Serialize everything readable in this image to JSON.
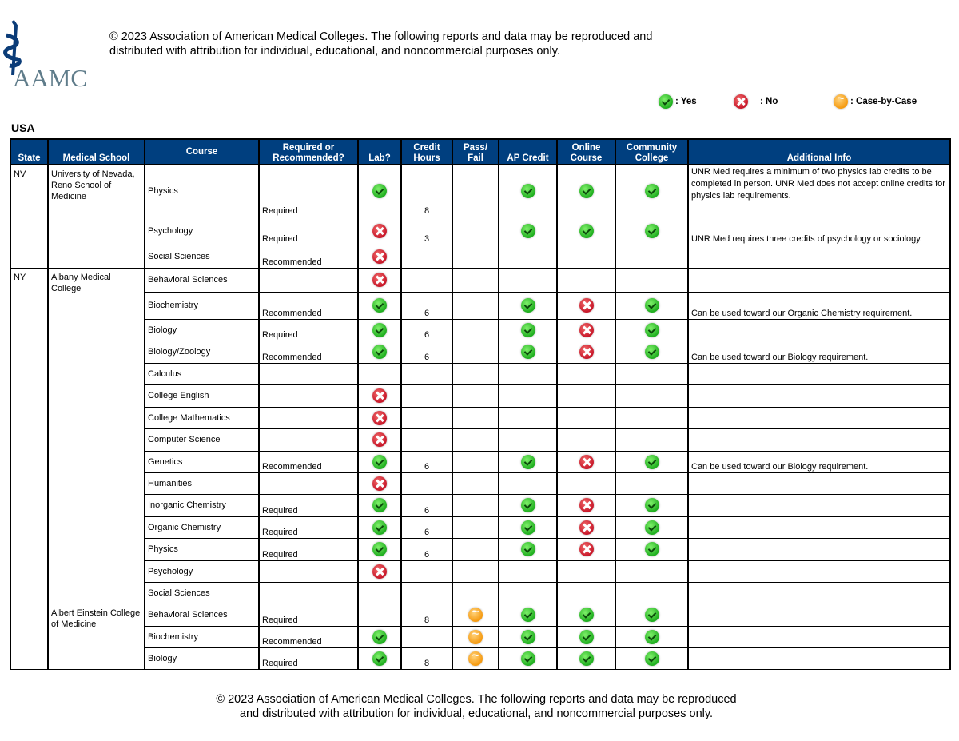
{
  "header": {
    "logo_text": "AAMC",
    "copyright": "© 2023 Association of American Medical Colleges. The following reports and data may be reproduced and distributed with attribution for individual, educational, and noncommercial purposes only."
  },
  "legend": {
    "yes": ": Yes",
    "no": ": No",
    "case": ": Case-by-Case"
  },
  "section_title": "USA",
  "columns": [
    "State",
    "Medical School",
    "Course",
    "Required or Recommended?",
    "Lab?",
    "Credit Hours",
    "Pass/ Fail",
    "AP Credit",
    "Online Course",
    "Community College",
    "Additional Info"
  ],
  "colors": {
    "header_bg": "#003f7f",
    "yes": "#1fae1f",
    "no": "#c8182a",
    "case": "#f59a10"
  },
  "states": [
    {
      "state": "NV",
      "schools": [
        {
          "name": "University of Nevada, Reno School of Medicine",
          "courses": [
            {
              "course": "Physics",
              "req": "Required",
              "lab": "yes",
              "hours": "8",
              "pf": "",
              "ap": "yes",
              "online": "yes",
              "cc": "yes",
              "info": "UNR Med requires a minimum of two physics lab credits to be completed in person. UNR Med does not accept online credits for physics lab requirements."
            },
            {
              "course": "Psychology",
              "req": "Required",
              "lab": "no",
              "hours": "3",
              "pf": "",
              "ap": "yes",
              "online": "yes",
              "cc": "yes",
              "info": "UNR Med requires three credits of psychology or sociology."
            },
            {
              "course": "Social Sciences",
              "req": "Recommended",
              "lab": "no",
              "hours": "",
              "pf": "",
              "ap": "",
              "online": "",
              "cc": "",
              "info": ""
            }
          ]
        }
      ]
    },
    {
      "state": "NY",
      "schools": [
        {
          "name": "Albany Medical College",
          "courses": [
            {
              "course": "Behavioral Sciences",
              "req": "",
              "lab": "no",
              "hours": "",
              "pf": "",
              "ap": "",
              "online": "",
              "cc": "",
              "info": ""
            },
            {
              "course": "Biochemistry",
              "req": "Recommended",
              "lab": "yes",
              "hours": "6",
              "pf": "",
              "ap": "yes",
              "online": "no",
              "cc": "yes",
              "info": "Can be used toward our Organic Chemistry requirement."
            },
            {
              "course": "Biology",
              "req": "Required",
              "lab": "yes",
              "hours": "6",
              "pf": "",
              "ap": "yes",
              "online": "no",
              "cc": "yes",
              "info": ""
            },
            {
              "course": "Biology/Zoology",
              "req": "Recommended",
              "lab": "yes",
              "hours": "6",
              "pf": "",
              "ap": "yes",
              "online": "no",
              "cc": "yes",
              "info": "Can be used toward our Biology requirement."
            },
            {
              "course": "Calculus",
              "req": "",
              "lab": "",
              "hours": "",
              "pf": "",
              "ap": "",
              "online": "",
              "cc": "",
              "info": ""
            },
            {
              "course": "College English",
              "req": "",
              "lab": "no",
              "hours": "",
              "pf": "",
              "ap": "",
              "online": "",
              "cc": "",
              "info": ""
            },
            {
              "course": "College Mathematics",
              "req": "",
              "lab": "no",
              "hours": "",
              "pf": "",
              "ap": "",
              "online": "",
              "cc": "",
              "info": ""
            },
            {
              "course": "Computer Science",
              "req": "",
              "lab": "no",
              "hours": "",
              "pf": "",
              "ap": "",
              "online": "",
              "cc": "",
              "info": ""
            },
            {
              "course": "Genetics",
              "req": "Recommended",
              "lab": "yes",
              "hours": "6",
              "pf": "",
              "ap": "yes",
              "online": "no",
              "cc": "yes",
              "info": "Can be used toward our Biology requirement."
            },
            {
              "course": "Humanities",
              "req": "",
              "lab": "no",
              "hours": "",
              "pf": "",
              "ap": "",
              "online": "",
              "cc": "",
              "info": ""
            },
            {
              "course": "Inorganic Chemistry",
              "req": "Required",
              "lab": "yes",
              "hours": "6",
              "pf": "",
              "ap": "yes",
              "online": "no",
              "cc": "yes",
              "info": ""
            },
            {
              "course": "Organic Chemistry",
              "req": "Required",
              "lab": "yes",
              "hours": "6",
              "pf": "",
              "ap": "yes",
              "online": "no",
              "cc": "yes",
              "info": ""
            },
            {
              "course": "Physics",
              "req": "Required",
              "lab": "yes",
              "hours": "6",
              "pf": "",
              "ap": "yes",
              "online": "no",
              "cc": "yes",
              "info": ""
            },
            {
              "course": "Psychology",
              "req": "",
              "lab": "no",
              "hours": "",
              "pf": "",
              "ap": "",
              "online": "",
              "cc": "",
              "info": ""
            },
            {
              "course": "Social Sciences",
              "req": "",
              "lab": "",
              "hours": "",
              "pf": "",
              "ap": "",
              "online": "",
              "cc": "",
              "info": ""
            }
          ]
        },
        {
          "name": "Albert Einstein College of Medicine",
          "courses": [
            {
              "course": "Behavioral Sciences",
              "req": "Required",
              "lab": "",
              "hours": "8",
              "pf": "case",
              "ap": "yes",
              "online": "yes",
              "cc": "yes",
              "info": ""
            },
            {
              "course": "Biochemistry",
              "req": "Recommended",
              "lab": "yes",
              "hours": "",
              "pf": "case",
              "ap": "yes",
              "online": "yes",
              "cc": "yes",
              "info": ""
            },
            {
              "course": "Biology",
              "req": "Required",
              "lab": "yes",
              "hours": "8",
              "pf": "case",
              "ap": "yes",
              "online": "yes",
              "cc": "yes",
              "info": ""
            }
          ]
        }
      ]
    }
  ],
  "footer": {
    "line1": "© 2023 Association of American Medical Colleges. The following reports and data may be reproduced",
    "line2": "and distributed with attribution for individual, educational, and noncommercial purposes only."
  }
}
